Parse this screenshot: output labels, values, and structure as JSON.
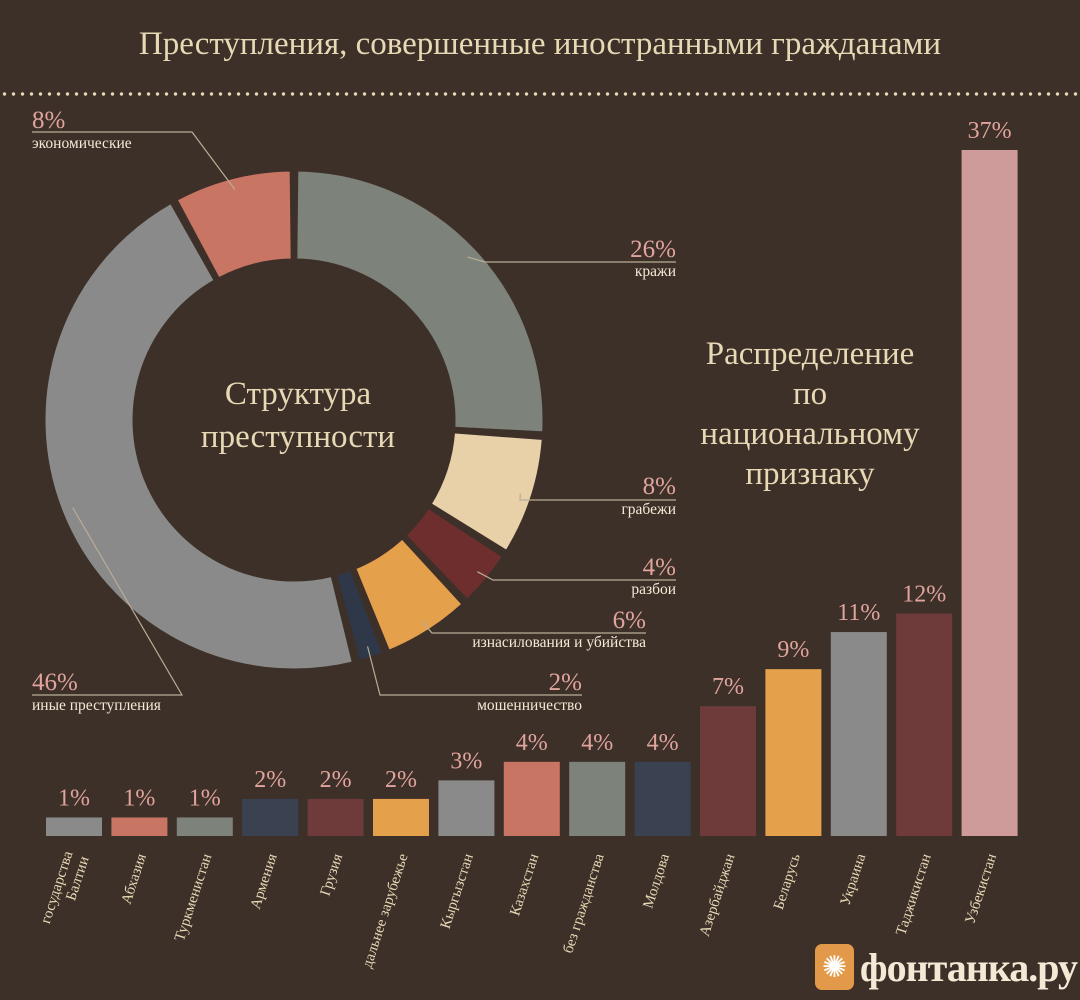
{
  "title": "Преступления, совершенные иностранными гражданами",
  "logo": {
    "text": "фонтанка.ру",
    "icon": "firebird-icon",
    "color": "#e29a4a"
  },
  "chart_data": [
    {
      "type": "pie",
      "variant": "donut",
      "title": "Структура преступности",
      "center_lines": [
        "Структура",
        "преступности"
      ],
      "slices": [
        {
          "label": "кражи",
          "value": 26,
          "display": "26%",
          "color": "#7d827a"
        },
        {
          "label": "грабежи",
          "value": 8,
          "display": "8%",
          "color": "#e8d0a8"
        },
        {
          "label": "разбои",
          "value": 4,
          "display": "4%",
          "color": "#6e2e2e"
        },
        {
          "label": "изнасилования и убийства",
          "value": 6,
          "display": "6%",
          "color": "#e5a04c"
        },
        {
          "label": "мошенничество",
          "value": 2,
          "display": "2%",
          "color": "#2e3848"
        },
        {
          "label": "иные преступления",
          "value": 46,
          "display": "46%",
          "color": "#8a8a8a"
        },
        {
          "label": "экономические",
          "value": 8,
          "display": "8%",
          "color": "#c87563"
        }
      ]
    },
    {
      "type": "bar",
      "title": "Распределение по национальному признаку",
      "title_lines": [
        "Распределение",
        "по",
        "национальному",
        "признаку"
      ],
      "ylim": [
        0,
        37
      ],
      "categories": [
        {
          "lines": [
            "государства",
            "Балтии"
          ],
          "value": 1,
          "display": "1%",
          "color": "#8a8a8a"
        },
        {
          "lines": [
            "Абхазия"
          ],
          "value": 1,
          "display": "1%",
          "color": "#c87563"
        },
        {
          "lines": [
            "Туркменистан"
          ],
          "value": 1,
          "display": "1%",
          "color": "#7d827a"
        },
        {
          "lines": [
            "Армения"
          ],
          "value": 2,
          "display": "2%",
          "color": "#3a4252"
        },
        {
          "lines": [
            "Грузия"
          ],
          "value": 2,
          "display": "2%",
          "color": "#6f3a3a"
        },
        {
          "lines": [
            "дальнее зарубежье"
          ],
          "value": 2,
          "display": "2%",
          "color": "#e5a04c"
        },
        {
          "lines": [
            "Кыргызстан"
          ],
          "value": 3,
          "display": "3%",
          "color": "#8a8a8a"
        },
        {
          "lines": [
            "Казахстан"
          ],
          "value": 4,
          "display": "4%",
          "color": "#c87563"
        },
        {
          "lines": [
            "без гражданства"
          ],
          "value": 4,
          "display": "4%",
          "color": "#7d827a"
        },
        {
          "lines": [
            "Молдова"
          ],
          "value": 4,
          "display": "4%",
          "color": "#3a4252"
        },
        {
          "lines": [
            "Азербайджан"
          ],
          "value": 7,
          "display": "7%",
          "color": "#6f3a3a"
        },
        {
          "lines": [
            "Беларусь"
          ],
          "value": 9,
          "display": "9%",
          "color": "#e5a04c"
        },
        {
          "lines": [
            "Украина"
          ],
          "value": 11,
          "display": "11%",
          "color": "#8a8a8a"
        },
        {
          "lines": [
            "Таджикистан"
          ],
          "value": 12,
          "display": "12%",
          "color": "#6f3a3a"
        },
        {
          "lines": [
            "Узбекистан"
          ],
          "value": 37,
          "display": "37%",
          "color": "#cf9a9a"
        }
      ]
    }
  ]
}
